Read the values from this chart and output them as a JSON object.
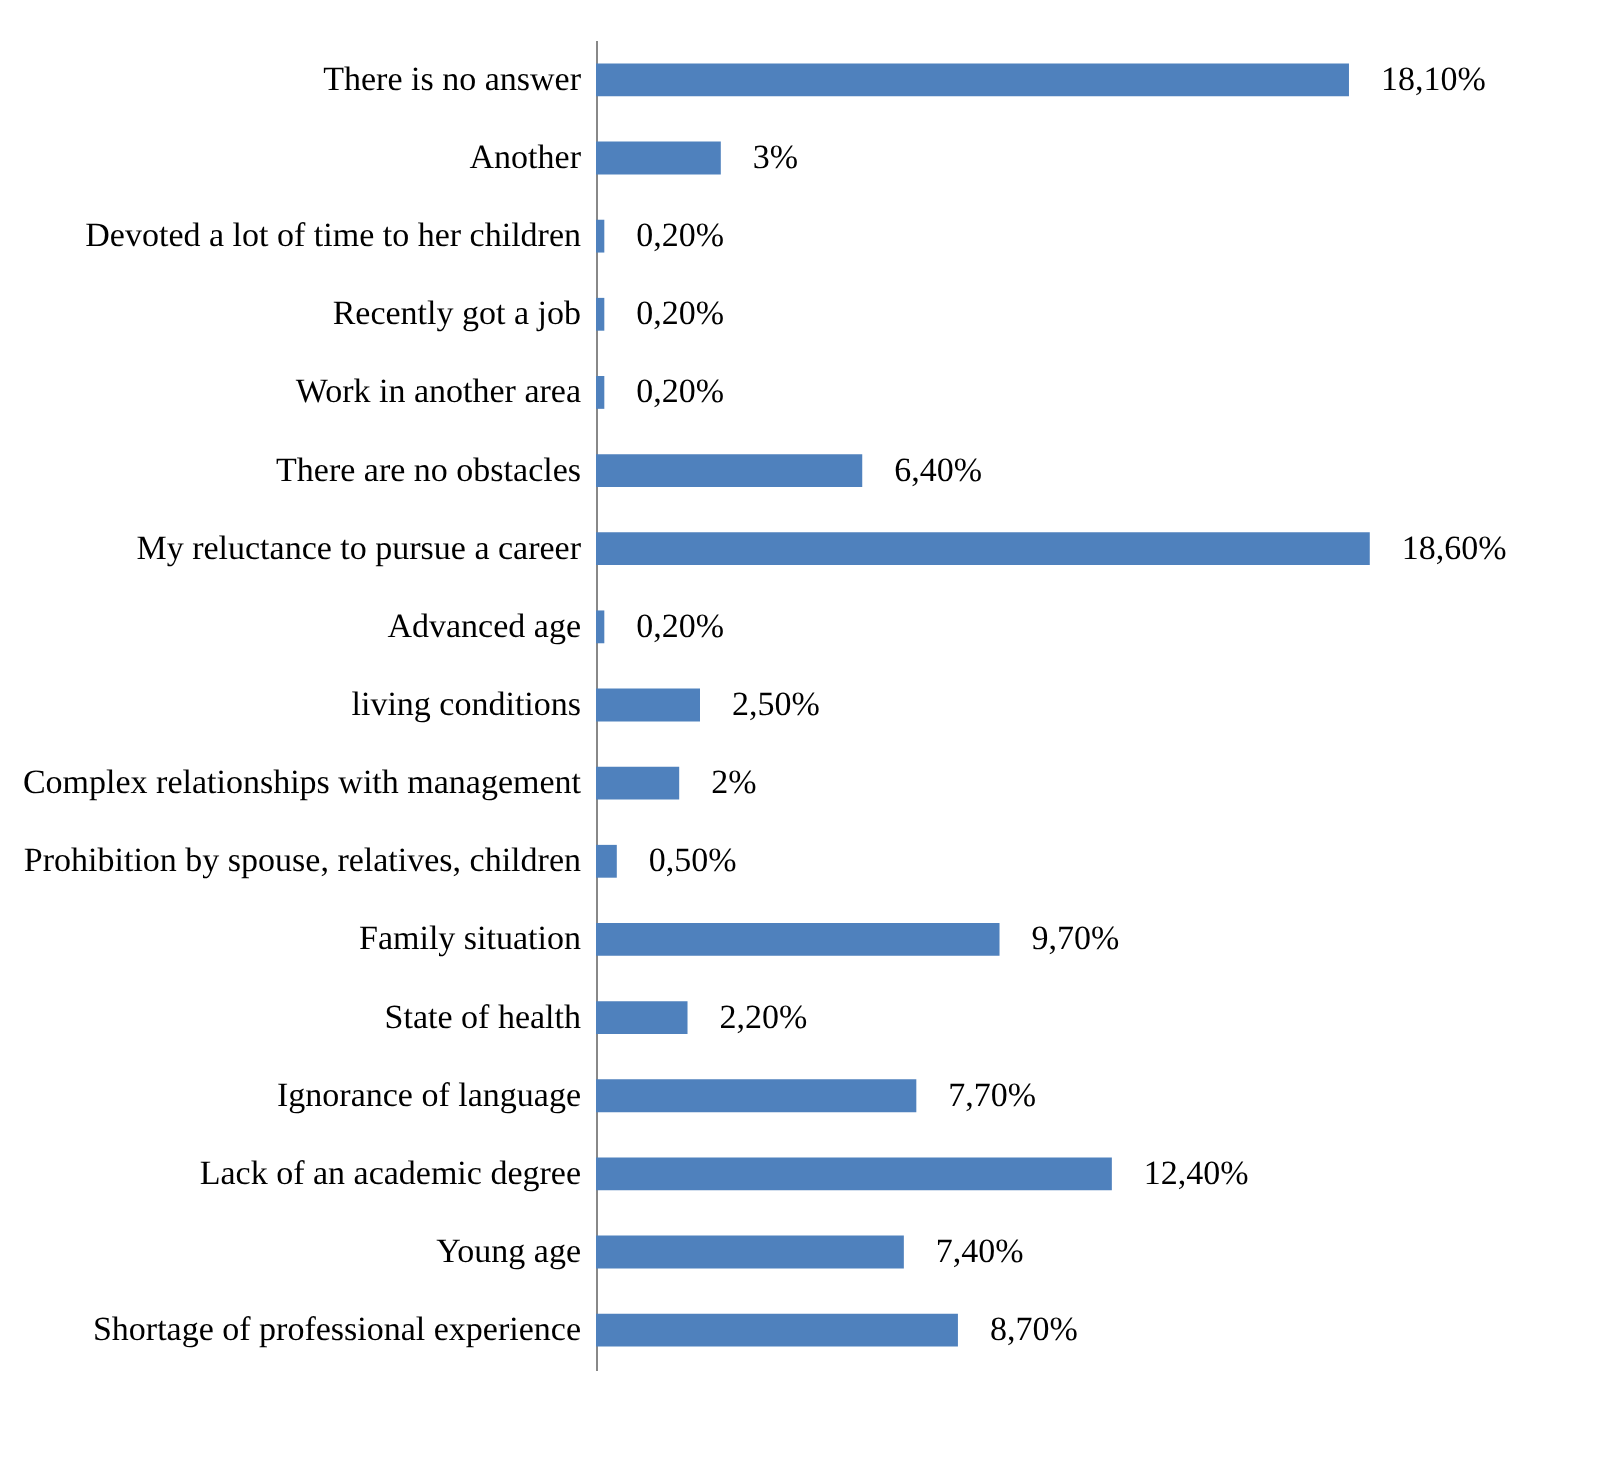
{
  "chart_data": {
    "type": "bar",
    "orientation": "horizontal",
    "categories": [
      "There is no answer",
      "Another",
      "Devoted a lot of time to her children",
      "Recently got a job",
      "Work in another area",
      "There are no obstacles",
      "My reluctance to pursue a career",
      "Advanced age",
      "living conditions",
      "Complex relationships with management",
      "Prohibition by spouse, relatives, children",
      "Family situation",
      "State of health",
      "Ignorance of language",
      "Lack of an academic degree",
      "Young age",
      "Shortage of professional experience"
    ],
    "values": [
      18.1,
      3,
      0.2,
      0.2,
      0.2,
      6.4,
      18.6,
      0.2,
      2.5,
      2,
      0.5,
      9.7,
      2.2,
      7.7,
      12.4,
      7.4,
      8.7
    ],
    "value_labels": [
      "18,10%",
      "3%",
      "0,20%",
      "0,20%",
      "0,20%",
      "6,40%",
      "18,60%",
      "0,20%",
      "2,50%",
      "2%",
      "0,50%",
      "9,70%",
      "2,20%",
      "7,70%",
      "12,40%",
      "7,40%",
      "8,70%"
    ],
    "color": "#4f81bd"
  }
}
